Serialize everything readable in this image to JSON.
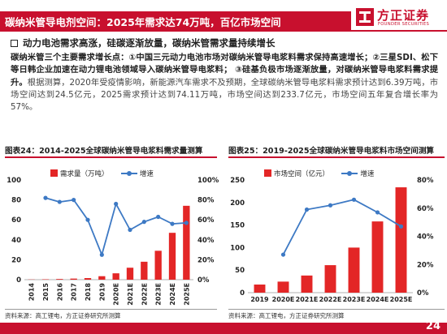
{
  "header": {
    "title": "碳纳米管导电剂空间：2025年需求达74万吨，百亿市场空间",
    "logo_cn": "方正证券",
    "logo_en": "FOUNDER SECURITIES"
  },
  "section": {
    "heading": "动力电池需求高涨，硅碳逐渐放量，碳纳米管需求量持续增长",
    "para_bold": "碳纳米管三个主要需求增长点：①中国三元动力电池市场对碳纳米管导电浆料需求保持高速增长；②三星SDI、松下等日韩企业加速在动力锂电池领域导入碳纳米管导电浆料； ③硅基负极市场逐渐放量，对碳纳米管导电浆料需求提升。",
    "para_normal": "根据测算，2020年受疫情影响，新能源汽车需求不及预期，全球碳纳米管导电浆料需求预计达到6.39万吨，市场空间达到24.5亿元，2025需求预计达到74.11万吨，市场空间达到233.7亿元，市场空间五年复合增长率为57%。"
  },
  "figures": [
    {
      "title": "图表24：2014-2025全球碳纳米管导电浆料需求量测算",
      "source": "资料来源：高工锂电，方正证券研究所测算"
    },
    {
      "title": "图表25：2019-2025全球碳纳米管导电浆料市场空间测算",
      "source": "资料来源：高工锂电，方正证券研究所测算"
    }
  ],
  "page_number": "24",
  "colors": {
    "accent": "#c8102e",
    "bar": "#e32626",
    "line": "#3d79c4"
  },
  "chart_data": [
    {
      "type": "bar",
      "categories": [
        "2014",
        "2015",
        "2016",
        "2017",
        "2018",
        "2019",
        "2020E",
        "2021E",
        "2022E",
        "2023E",
        "2024E",
        "2025E"
      ],
      "series": [
        {
          "name": "需求量（万吨）",
          "type": "bar",
          "axis": "left",
          "values": [
            0.2,
            0.4,
            0.7,
            1.1,
            1.6,
            3.5,
            6.39,
            12,
            18,
            29,
            47,
            74.11
          ]
        },
        {
          "name": "增速",
          "type": "line",
          "axis": "right",
          "values": [
            null,
            82,
            78,
            80,
            60,
            25,
            76,
            50,
            58,
            63,
            56,
            57
          ]
        }
      ],
      "ylim_left": [
        0,
        100
      ],
      "ylim_right": [
        0,
        100
      ],
      "yticks_left": [
        "0",
        "20",
        "40",
        "60",
        "80",
        "100"
      ],
      "yticks_right": [
        "0%",
        "20%",
        "40%",
        "60%",
        "80%",
        "100%"
      ],
      "legend": "top-left"
    },
    {
      "type": "bar",
      "categories": [
        "2019",
        "2020E",
        "2021E",
        "2022E",
        "2023E",
        "2024E",
        "2025E"
      ],
      "series": [
        {
          "name": "市场空间（亿元）",
          "type": "bar",
          "axis": "left",
          "values": [
            18,
            24.5,
            38,
            61,
            100,
            158,
            233.7
          ]
        },
        {
          "name": "增速",
          "type": "line",
          "axis": "right",
          "values": [
            null,
            27,
            59,
            62,
            66,
            57,
            47
          ]
        }
      ],
      "ylim_left": [
        0,
        250
      ],
      "ylim_right": [
        0,
        80
      ],
      "yticks_left": [
        "0",
        "50",
        "100",
        "150",
        "200",
        "250"
      ],
      "yticks_right": [
        "0%",
        "20%",
        "40%",
        "60%",
        "80%"
      ],
      "legend": "top-left"
    }
  ]
}
